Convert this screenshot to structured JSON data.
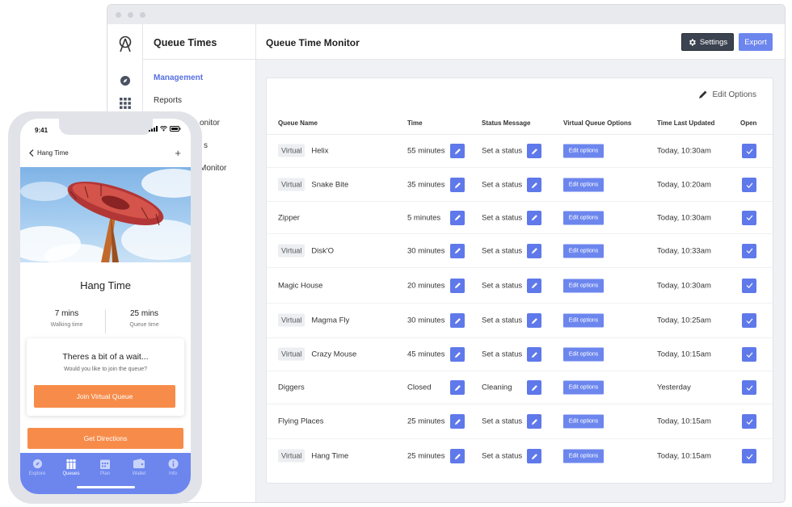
{
  "app": {
    "name": "Queue Times",
    "nav": [
      {
        "label": "Management",
        "active": true
      },
      {
        "label": "Reports",
        "active": false
      },
      {
        "label": "onitor",
        "active": false
      },
      {
        "label": "s",
        "active": false
      },
      {
        "label": "Monitor",
        "active": false
      }
    ]
  },
  "header": {
    "title": "Queue Time Monitor",
    "settings_label": "Settings",
    "export_label": "Export"
  },
  "table": {
    "edit_options_label": "Edit Options",
    "columns": [
      "Queue Name",
      "Time",
      "Status Message",
      "Virtual Queue Options",
      "Time Last Updated",
      "Open"
    ],
    "edit_options_button": "Edit options",
    "rows": [
      {
        "virtual": "Virtual",
        "name": "Helix",
        "time": "55 minutes",
        "status": "Set a status",
        "updated": "Today, 10:30am",
        "open": true
      },
      {
        "virtual": "Virtual",
        "name": "Snake Bite",
        "time": "35 minutes",
        "status": "Set a status",
        "updated": "Today, 10:20am",
        "open": true
      },
      {
        "virtual": "",
        "name": "Zipper",
        "time": "5 minutes",
        "status": "Set a status",
        "updated": "Today, 10:30am",
        "open": true
      },
      {
        "virtual": "Virtual",
        "name": "Disk'O",
        "time": "30 minutes",
        "status": "Set a status",
        "updated": "Today, 10:33am",
        "open": true
      },
      {
        "virtual": "",
        "name": "Magic House",
        "time": "20 minutes",
        "status": "Set a status",
        "updated": "Today, 10:30am",
        "open": true
      },
      {
        "virtual": "Virtual",
        "name": "Magma Fly",
        "time": "30 minutes",
        "status": "Set a status",
        "updated": "Today, 10:25am",
        "open": true
      },
      {
        "virtual": "Virtual",
        "name": "Crazy Mouse",
        "time": "45 minutes",
        "status": "Set a status",
        "updated": "Today, 10:15am",
        "open": true
      },
      {
        "virtual": "",
        "name": "Diggers",
        "time": "Closed",
        "status": "Cleaning",
        "updated": "Yesterday",
        "open": true
      },
      {
        "virtual": "",
        "name": "Flying Places",
        "time": "25 minutes",
        "status": "Set a status",
        "updated": "Today, 10:15am",
        "open": true
      },
      {
        "virtual": "Virtual",
        "name": "Hang Time",
        "time": "25 minutes",
        "status": "Set a status",
        "updated": "Today, 10:15am",
        "open": true
      }
    ]
  },
  "phone": {
    "status_time": "9:41",
    "back_label": "Hang Time",
    "plus_label": "+",
    "ride_name": "Hang Time",
    "walking_value": "7 mins",
    "walking_label": "Walking time",
    "queue_value": "25 mins",
    "queue_label": "Queue time",
    "wait_title": "Theres a bit of a wait...",
    "wait_subtitle": "Would you like to join the queue?",
    "join_label": "Join Virtual Queue",
    "directions_label": "Get Directions",
    "tabs": [
      {
        "label": "Explore",
        "icon": "compass-icon",
        "active": false
      },
      {
        "label": "Queues",
        "icon": "people-icon",
        "active": true
      },
      {
        "label": "Plan",
        "icon": "calendar-icon",
        "active": false
      },
      {
        "label": "Wallet",
        "icon": "wallet-icon",
        "active": false
      },
      {
        "label": "Info",
        "icon": "info-icon",
        "active": false
      }
    ]
  },
  "colors": {
    "accent": "#6c86ee",
    "accent_dark": "#5f79ea",
    "orange": "#f78c4a",
    "dark_button": "#3c4350"
  }
}
